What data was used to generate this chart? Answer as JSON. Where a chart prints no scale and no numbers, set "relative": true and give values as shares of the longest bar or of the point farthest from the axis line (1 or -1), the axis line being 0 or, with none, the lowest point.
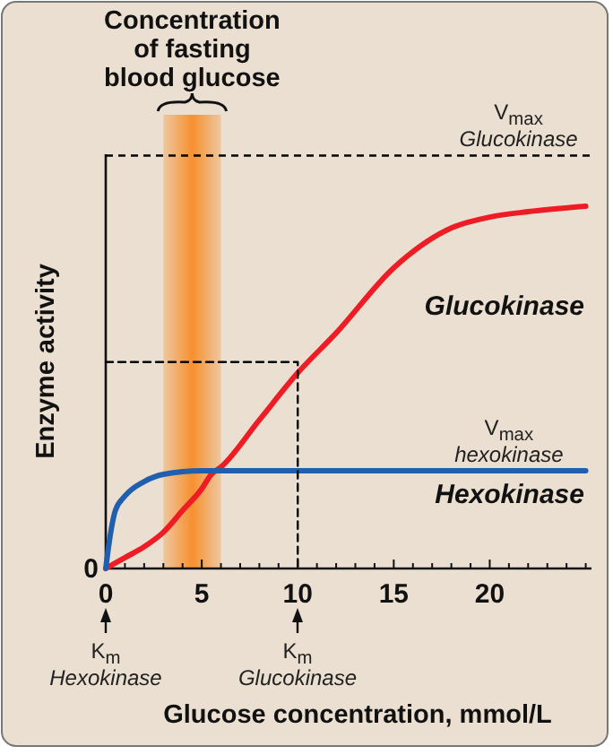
{
  "chart_data": {
    "type": "line",
    "relative": true,
    "xlabel": "Glucose concentration, mmol/L",
    "ylabel": "Enzyme activity",
    "xlim": [
      0,
      25.3
    ],
    "xticks": [
      0,
      {
        "value": 1,
        "label": null
      },
      {
        "value": 2,
        "label": null
      },
      {
        "value": 3,
        "label": null
      },
      {
        "value": 4,
        "label": null
      },
      5,
      {
        "value": 6,
        "label": null
      },
      {
        "value": 7,
        "label": null
      },
      {
        "value": 8,
        "label": null
      },
      {
        "value": 9,
        "label": null
      },
      10,
      {
        "value": 11,
        "label": null
      },
      {
        "value": 12,
        "label": null
      },
      {
        "value": 13,
        "label": null
      },
      {
        "value": 14,
        "label": null
      },
      15,
      {
        "value": 16,
        "label": null
      },
      {
        "value": 17,
        "label": null
      },
      {
        "value": 18,
        "label": null
      },
      {
        "value": 19,
        "label": null
      },
      20,
      {
        "value": 21,
        "label": null
      },
      {
        "value": 22,
        "label": null
      },
      {
        "value": 23,
        "label": null
      },
      {
        "value": 24,
        "label": null
      },
      {
        "value": 25,
        "label": null
      }
    ],
    "x": [
      0,
      1,
      2,
      3,
      4,
      5,
      5.5,
      6,
      8,
      10,
      12,
      15,
      18,
      20,
      22,
      25
    ],
    "series": [
      {
        "name": "Glucokinase",
        "color": "#ee1c24",
        "values": [
          0,
          0.03,
          0.06,
          0.1,
          0.16,
          0.22,
          0.26,
          0.28,
          0.41,
          0.54,
          0.65,
          0.83,
          0.94,
          0.97,
          0.985,
          1.0
        ]
      },
      {
        "name": "Hexokinase",
        "color": "#1f5fad",
        "x": [
          0,
          0.2,
          0.5,
          1,
          2,
          3,
          5,
          10,
          25
        ],
        "values": [
          0,
          0.08,
          0.16,
          0.2,
          0.24,
          0.26,
          0.27,
          0.27,
          0.27
        ]
      },
      {
        "type": "line",
        "line_style": "dashed",
        "color": "#000000",
        "x": [
          0,
          10,
          10
        ],
        "values": [
          0.57,
          0.57,
          0
        ]
      }
    ],
    "ref_lines": [
      {
        "axis": "y",
        "value": 1.14,
        "color": "#000000",
        "line_style": "dashed"
      }
    ],
    "bands": [
      {
        "axis": "x",
        "from": 3,
        "to": 6,
        "color": "#f7902f",
        "label": "Concentration of fasting blood glucose"
      }
    ],
    "annotations": [
      "0",
      {
        "text": "V$_{max}$ Glucokinase",
        "x": 21.5,
        "y": 1.14
      },
      {
        "text": "V$_{max}$ hexokinase",
        "x": 21,
        "y": 0.27
      },
      "K$_{m}$ Hexokinase",
      "K$_{m}$ Glucokinase"
    ]
  }
}
